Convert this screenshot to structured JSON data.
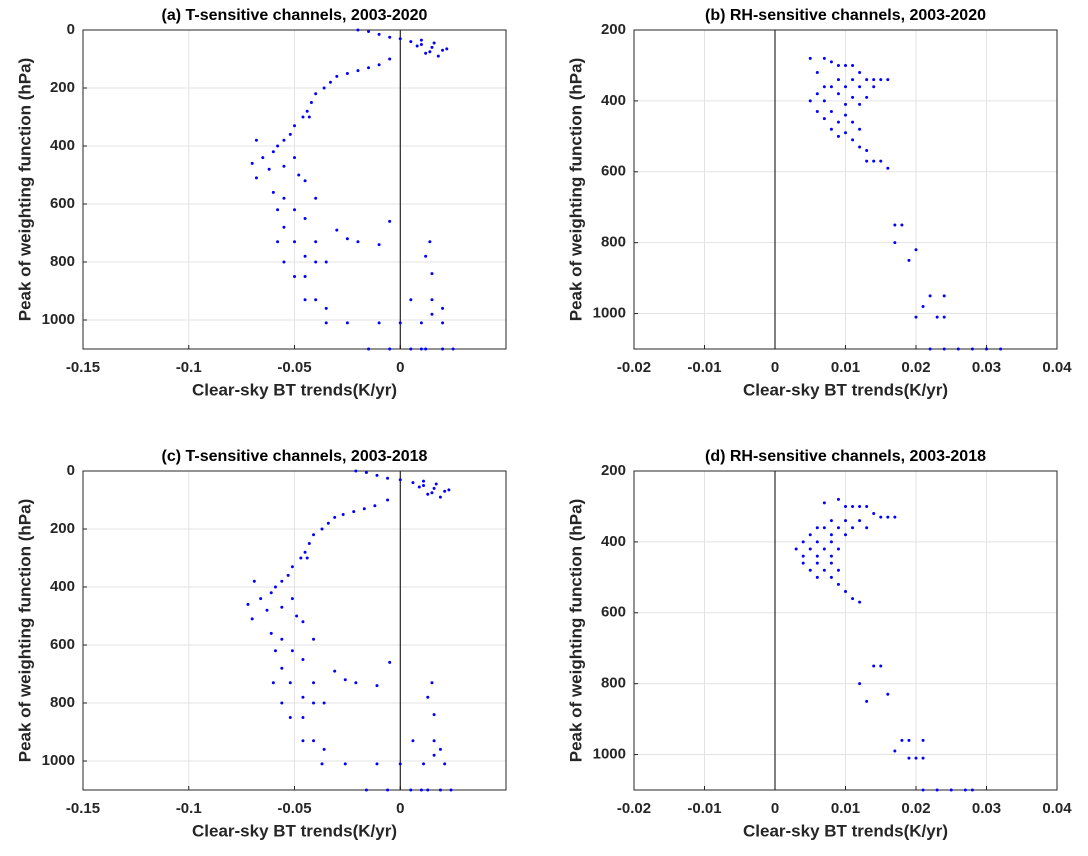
{
  "chart_data": [
    {
      "type": "scatter",
      "title": "(a) T-sensitive channels, 2003-2020",
      "xlabel": "Clear-sky BT trends(K/yr)",
      "ylabel": "Peak of weighting function (hPa)",
      "color": "#0000ff",
      "xlim": [
        -0.15,
        0.05
      ],
      "xticks": [
        -0.15,
        -0.1,
        -0.05,
        0
      ],
      "ylim": [
        0,
        1100
      ],
      "yticks": [
        0,
        200,
        400,
        600,
        800,
        1000
      ],
      "y_reversed": true,
      "grid": true,
      "vline": 0,
      "x": [
        0,
        0.005,
        0.01,
        0.015,
        0.02,
        0.012,
        0.018,
        0.008,
        0.016,
        0.022,
        0.014,
        0.01,
        -0.005,
        -0.01,
        -0.015,
        -0.02,
        -0.005,
        -0.01,
        -0.015,
        -0.02,
        -0.025,
        -0.03,
        -0.033,
        -0.036,
        -0.04,
        -0.042,
        -0.044,
        -0.046,
        -0.043,
        -0.05,
        -0.052,
        -0.055,
        -0.058,
        -0.06,
        -0.068,
        -0.065,
        -0.07,
        -0.062,
        -0.068,
        -0.055,
        -0.05,
        -0.048,
        -0.045,
        -0.06,
        -0.055,
        -0.04,
        -0.058,
        -0.05,
        -0.045,
        -0.055,
        -0.058,
        -0.05,
        -0.04,
        -0.03,
        -0.02,
        -0.01,
        -0.005,
        -0.055,
        -0.045,
        -0.04,
        -0.05,
        -0.045,
        -0.035,
        -0.025,
        -0.045,
        -0.04,
        -0.035,
        -0.035,
        -0.025,
        -0.01,
        0,
        0.01,
        0.005,
        0.015,
        0.02,
        0.015,
        0.02,
        0.012,
        0.014,
        0.015,
        -0.015,
        -0.005,
        0.005,
        0.012,
        0.02,
        0.025,
        0.01
      ],
      "values": [
        30,
        40,
        50,
        60,
        70,
        80,
        90,
        55,
        45,
        65,
        75,
        35,
        25,
        15,
        5,
        0,
        100,
        120,
        130,
        140,
        150,
        160,
        180,
        200,
        220,
        250,
        280,
        300,
        300,
        330,
        360,
        380,
        400,
        420,
        380,
        440,
        460,
        480,
        510,
        470,
        440,
        500,
        520,
        560,
        580,
        580,
        620,
        620,
        650,
        680,
        730,
        730,
        730,
        690,
        730,
        740,
        660,
        800,
        780,
        800,
        850,
        850,
        800,
        720,
        930,
        930,
        960,
        1010,
        1010,
        1010,
        1010,
        1010,
        930,
        980,
        1010,
        930,
        960,
        780,
        730,
        840,
        1100,
        1100,
        1100,
        1100,
        1100,
        1100,
        1100
      ]
    },
    {
      "type": "scatter",
      "title": "(b) RH-sensitive channels, 2003-2020",
      "xlabel": "Clear-sky BT trends(K/yr)",
      "ylabel": "Peak of weighting function (hPa)",
      "color": "#0000ff",
      "xlim": [
        -0.02,
        0.04
      ],
      "xticks": [
        -0.02,
        -0.01,
        0,
        0.01,
        0.02,
        0.03,
        0.04
      ],
      "ylim": [
        200,
        1100
      ],
      "yticks": [
        200,
        400,
        600,
        800,
        1000
      ],
      "y_reversed": true,
      "grid": true,
      "vline": 0,
      "x": [
        0.005,
        0.007,
        0.008,
        0.009,
        0.01,
        0.011,
        0.012,
        0.013,
        0.014,
        0.015,
        0.016,
        0.009,
        0.011,
        0.006,
        0.007,
        0.008,
        0.01,
        0.012,
        0.014,
        0.006,
        0.009,
        0.011,
        0.013,
        0.005,
        0.007,
        0.01,
        0.012,
        0.006,
        0.008,
        0.01,
        0.007,
        0.009,
        0.011,
        0.008,
        0.01,
        0.012,
        0.009,
        0.011,
        0.012,
        0.013,
        0.013,
        0.014,
        0.015,
        0.016,
        0.017,
        0.018,
        0.017,
        0.02,
        0.019,
        0.022,
        0.024,
        0.021,
        0.023,
        0.024,
        0.02,
        0.022,
        0.024,
        0.026,
        0.028,
        0.03,
        0.032
      ],
      "values": [
        280,
        280,
        290,
        300,
        300,
        300,
        320,
        340,
        340,
        340,
        340,
        340,
        340,
        320,
        360,
        360,
        360,
        360,
        360,
        380,
        380,
        390,
        390,
        400,
        400,
        410,
        410,
        430,
        430,
        440,
        450,
        460,
        460,
        480,
        490,
        480,
        500,
        510,
        530,
        540,
        570,
        570,
        570,
        590,
        750,
        750,
        800,
        820,
        850,
        950,
        950,
        980,
        1010,
        1010,
        1010,
        1100,
        1100,
        1100,
        1100,
        1100,
        1100
      ]
    },
    {
      "type": "scatter",
      "title": "(c) T-sensitive channels, 2003-2018",
      "xlabel": "Clear-sky BT trends(K/yr)",
      "ylabel": "Peak of weighting function (hPa)",
      "color": "#0000ff",
      "xlim": [
        -0.15,
        0.05
      ],
      "xticks": [
        -0.15,
        -0.1,
        -0.05,
        0
      ],
      "ylim": [
        0,
        1100
      ],
      "yticks": [
        0,
        200,
        400,
        600,
        800,
        1000
      ],
      "y_reversed": true,
      "grid": true,
      "vline": 0,
      "x": [
        0,
        0.006,
        0.011,
        0.016,
        0.021,
        0.013,
        0.019,
        0.009,
        0.017,
        0.023,
        0.015,
        0.011,
        -0.006,
        -0.011,
        -0.016,
        -0.021,
        -0.006,
        -0.012,
        -0.017,
        -0.022,
        -0.027,
        -0.031,
        -0.034,
        -0.037,
        -0.041,
        -0.043,
        -0.045,
        -0.047,
        -0.044,
        -0.051,
        -0.053,
        -0.056,
        -0.059,
        -0.061,
        -0.069,
        -0.066,
        -0.072,
        -0.063,
        -0.07,
        -0.056,
        -0.051,
        -0.049,
        -0.046,
        -0.061,
        -0.056,
        -0.041,
        -0.059,
        -0.051,
        -0.046,
        -0.056,
        -0.06,
        -0.052,
        -0.041,
        -0.031,
        -0.021,
        -0.011,
        -0.005,
        -0.056,
        -0.046,
        -0.041,
        -0.052,
        -0.046,
        -0.036,
        -0.026,
        -0.046,
        -0.041,
        -0.036,
        -0.037,
        -0.026,
        -0.011,
        0,
        0.011,
        0.006,
        0.016,
        0.021,
        0.016,
        0.019,
        0.013,
        0.015,
        0.016,
        -0.016,
        -0.006,
        0.005,
        0.013,
        0.019,
        0.024,
        0.01
      ],
      "values": [
        30,
        40,
        50,
        60,
        70,
        80,
        90,
        55,
        45,
        65,
        75,
        35,
        25,
        15,
        5,
        0,
        100,
        120,
        130,
        140,
        150,
        160,
        180,
        200,
        220,
        250,
        280,
        300,
        300,
        330,
        360,
        380,
        400,
        420,
        380,
        440,
        460,
        480,
        510,
        470,
        440,
        500,
        520,
        560,
        580,
        580,
        620,
        620,
        650,
        680,
        730,
        730,
        730,
        690,
        730,
        740,
        660,
        800,
        780,
        800,
        850,
        850,
        800,
        720,
        930,
        930,
        960,
        1010,
        1010,
        1010,
        1010,
        1010,
        930,
        980,
        1010,
        930,
        960,
        780,
        730,
        840,
        1100,
        1100,
        1100,
        1100,
        1100,
        1100,
        1100
      ]
    },
    {
      "type": "scatter",
      "title": "(d) RH-sensitive channels, 2003-2018",
      "xlabel": "Clear-sky BT trends(K/yr)",
      "ylabel": "Peak of weighting function (hPa)",
      "color": "#0000ff",
      "xlim": [
        -0.02,
        0.04
      ],
      "xticks": [
        -0.02,
        -0.01,
        0,
        0.01,
        0.02,
        0.03,
        0.04
      ],
      "ylim": [
        200,
        1100
      ],
      "yticks": [
        200,
        400,
        600,
        800,
        1000
      ],
      "y_reversed": true,
      "grid": true,
      "vline": 0,
      "x": [
        0.007,
        0.009,
        0.01,
        0.011,
        0.012,
        0.013,
        0.014,
        0.015,
        0.016,
        0.017,
        0.008,
        0.01,
        0.012,
        0.006,
        0.007,
        0.009,
        0.011,
        0.013,
        0.005,
        0.008,
        0.01,
        0.004,
        0.006,
        0.008,
        0.003,
        0.005,
        0.007,
        0.009,
        0.004,
        0.006,
        0.008,
        0.004,
        0.006,
        0.008,
        0.005,
        0.007,
        0.009,
        0.006,
        0.008,
        0.009,
        0.01,
        0.011,
        0.012,
        0.014,
        0.012,
        0.015,
        0.016,
        0.013,
        0.018,
        0.019,
        0.021,
        0.017,
        0.019,
        0.02,
        0.021,
        0.021,
        0.023,
        0.025,
        0.027,
        0.028
      ],
      "values": [
        290,
        280,
        300,
        300,
        300,
        300,
        320,
        330,
        330,
        330,
        340,
        340,
        340,
        360,
        360,
        360,
        360,
        360,
        380,
        380,
        380,
        400,
        400,
        400,
        420,
        420,
        420,
        420,
        440,
        440,
        440,
        460,
        460,
        460,
        480,
        480,
        480,
        500,
        500,
        520,
        540,
        560,
        570,
        750,
        800,
        750,
        830,
        850,
        960,
        960,
        960,
        990,
        1010,
        1010,
        1010,
        1100,
        1100,
        1100,
        1100,
        1100
      ]
    }
  ]
}
